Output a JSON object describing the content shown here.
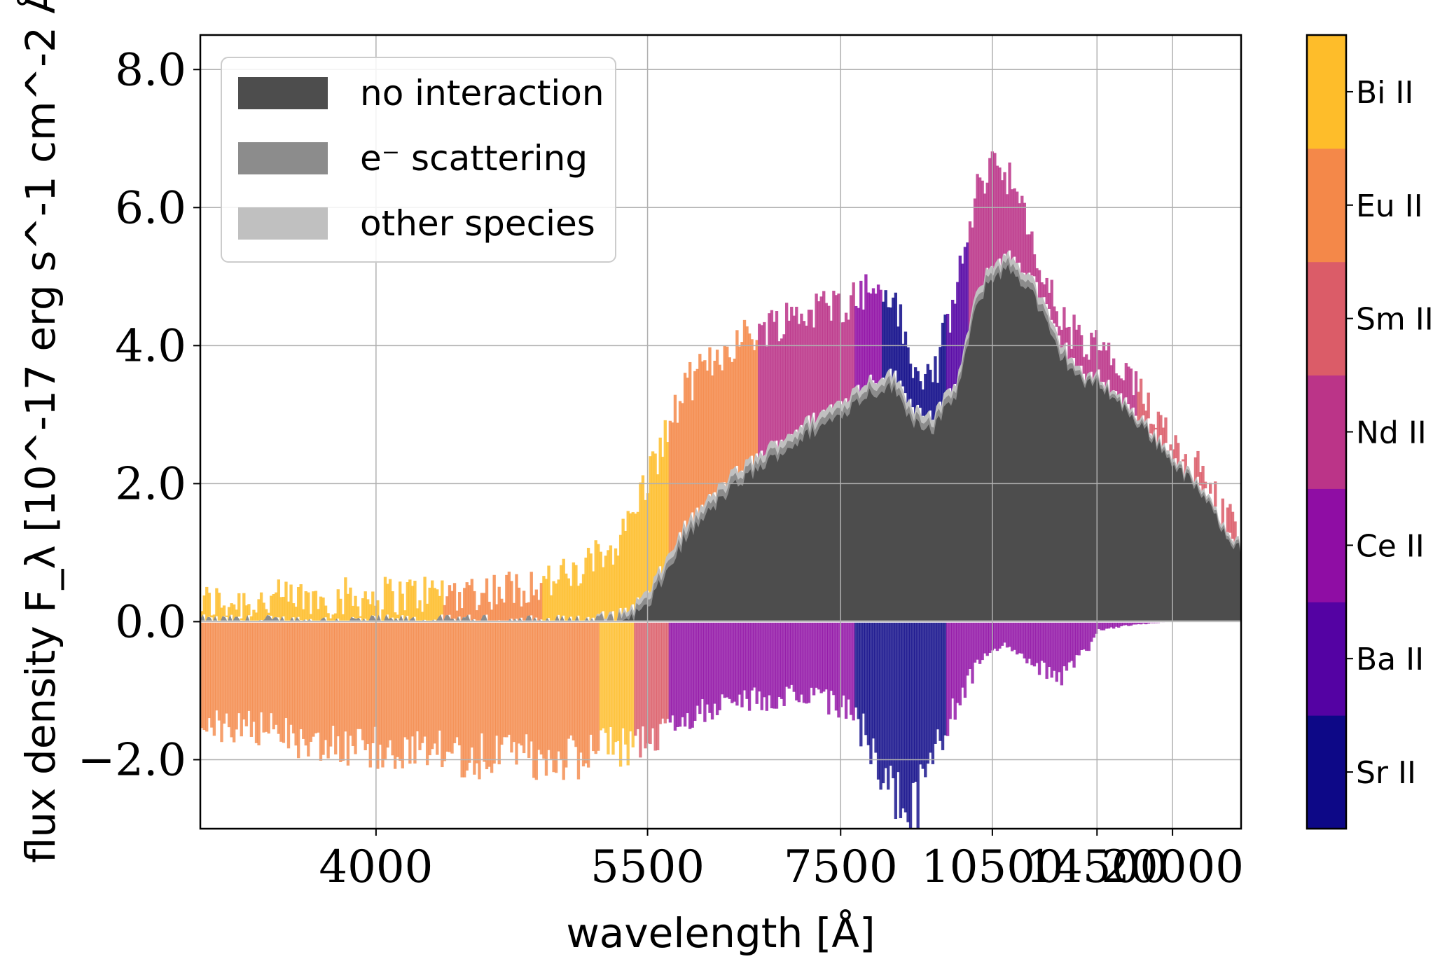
{
  "chart_data": {
    "type": "area",
    "xlabel": "wavelength [Å]",
    "ylabel": "flux density F_λ [10^-17 erg s^-1 cm^-2 Å^-1]",
    "x_scale": "reciprocal",
    "xlim": [
      3400,
      30500
    ],
    "ylim": [
      -3.0,
      8.5
    ],
    "x_ticks": [
      4000,
      5500,
      7500,
      10500,
      14500,
      20000
    ],
    "x_tick_labels": [
      "4000",
      "5500",
      "7500",
      "10500",
      "14500",
      "20000"
    ],
    "y_ticks": [
      -2.0,
      0.0,
      2.0,
      4.0,
      6.0,
      8.0
    ],
    "y_tick_labels": [
      "−2.0",
      "0.0",
      "2.0",
      "4.0",
      "6.0",
      "8.0"
    ],
    "grid": true,
    "legend_position": "top-left",
    "legend": [
      {
        "label": "no interaction",
        "color": "#4d4d4d"
      },
      {
        "label": "e⁻ scattering",
        "color": "#8c8c8c"
      },
      {
        "label": "other species",
        "color": "#c0c0c0"
      }
    ],
    "wavelength": [
      3400,
      4000,
      4600,
      5000,
      5300,
      5500,
      5800,
      6200,
      6800,
      7500,
      7900,
      8300,
      8700,
      9100,
      9600,
      10100,
      10500,
      11000,
      11700,
      12700,
      14000,
      14500,
      16000,
      18000,
      20000,
      23000,
      26000,
      30500
    ],
    "no_interaction": [
      0.0,
      0.0,
      0.0,
      0.0,
      0.0,
      0.2,
      1.2,
      1.9,
      2.5,
      3.0,
      3.3,
      3.4,
      2.9,
      2.8,
      3.3,
      4.6,
      5.0,
      5.1,
      4.8,
      3.9,
      3.4,
      3.5,
      3.1,
      2.7,
      2.3,
      1.9,
      1.45,
      1.0
    ],
    "e_scattering": [
      0.0,
      0.0,
      0.0,
      0.0,
      0.05,
      0.3,
      1.3,
      2.0,
      2.6,
      3.1,
      3.4,
      3.5,
      3.0,
      2.9,
      3.4,
      4.7,
      5.1,
      5.2,
      4.9,
      4.0,
      3.45,
      3.55,
      3.15,
      2.75,
      2.35,
      1.95,
      1.5,
      1.05
    ],
    "other_species": [
      0.0,
      0.0,
      0.0,
      0.0,
      0.1,
      0.4,
      1.4,
      2.1,
      2.7,
      3.2,
      3.5,
      3.6,
      3.1,
      3.0,
      3.5,
      4.8,
      5.2,
      5.3,
      5.0,
      4.1,
      3.5,
      3.6,
      3.2,
      2.8,
      2.4,
      2.0,
      1.55,
      1.1
    ],
    "emission_species_colorbar": [
      "Sr II",
      "Ba II",
      "Ce II",
      "Nd II",
      "Sm II",
      "Eu II",
      "Bi II"
    ],
    "colorbar_colors": [
      "#0d0887",
      "#5402a3",
      "#8f0da4",
      "#bb3488",
      "#db5c68",
      "#f48849",
      "#febd2a"
    ],
    "emission_total_top": [
      0.15,
      0.25,
      0.35,
      0.55,
      1.1,
      2.0,
      3.3,
      3.9,
      4.3,
      4.5,
      4.7,
      4.6,
      3.4,
      3.5,
      4.8,
      6.2,
      6.6,
      6.3,
      5.3,
      4.3,
      3.8,
      3.9,
      3.4,
      3.0,
      2.5,
      2.05,
      1.55,
      1.1
    ],
    "absorption_total_bottom": [
      -1.2,
      -1.5,
      -1.6,
      -1.6,
      -1.5,
      -1.4,
      -1.1,
      -0.9,
      -0.9,
      -1.0,
      -1.4,
      -2.0,
      -2.2,
      -1.6,
      -0.9,
      -0.5,
      -0.3,
      -0.3,
      -0.5,
      -0.7,
      -0.3,
      -0.1,
      -0.05,
      -0.02,
      0.0,
      0.0,
      0.0,
      0.0
    ],
    "emission_species_by_wavelength": [
      "Bi II",
      "Bi II",
      "Eu II",
      "Bi II",
      "Bi II",
      "Bi II",
      "Eu II",
      "Eu II",
      "Nd II",
      "Nd II",
      "Ce II",
      "Sr II",
      "Sr II",
      "Sr II",
      "Ba II",
      "Nd II",
      "Nd II",
      "Nd II",
      "Nd II",
      "Nd II",
      "Nd II",
      "Nd II",
      "Nd II",
      "Sm II",
      "Sm II",
      "Sm II",
      "Sm II",
      "Sm II"
    ],
    "absorption_species_by_wavelength": [
      "Eu II",
      "Eu II",
      "Eu II",
      "Eu II",
      "Bi II",
      "Sm II",
      "Ce II",
      "Ce II",
      "Ce II",
      "Ce II",
      "Sr II",
      "Sr II",
      "Sr II",
      "Sr II",
      "Ce II",
      "Ce II",
      "Ce II",
      "Ce II",
      "Ce II",
      "Ce II",
      "Ce II",
      "Ce II",
      "Ce II",
      "Ce II",
      "Ce II",
      "Ce II",
      "Ce II",
      "Ce II"
    ]
  }
}
